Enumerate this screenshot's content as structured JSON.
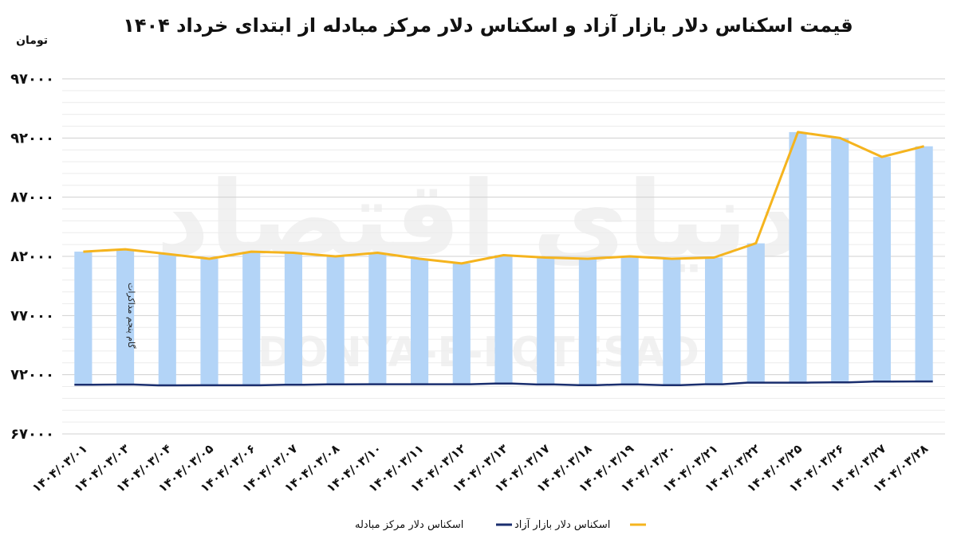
{
  "chart_data": {
    "type": "bar",
    "title": "قیمت اسکناس دلار بازار آزاد و اسکناس دلار مرکز مبادله از ابتدای خرداد ۱۴۰۴",
    "ylabel": "تومان",
    "ylim": [
      67000,
      97000
    ],
    "yticks": [
      67000,
      72000,
      77000,
      82000,
      87000,
      92000,
      97000
    ],
    "ytick_labels": [
      "۶۷۰۰۰",
      "۷۲۰۰۰",
      "۷۷۰۰۰",
      "۸۲۰۰۰",
      "۸۷۰۰۰",
      "۹۲۰۰۰",
      "۹۷۰۰۰"
    ],
    "grid": true,
    "legend_position": "bottom",
    "categories": [
      "۱۴۰۴/۰۳/۰۱",
      "۱۴۰۴/۰۳/۰۳",
      "۱۴۰۴/۰۳/۰۴",
      "۱۴۰۴/۰۳/۰۵",
      "۱۴۰۴/۰۳/۰۶",
      "۱۴۰۴/۰۳/۰۷",
      "۱۴۰۴/۰۳/۰۸",
      "۱۴۰۴/۰۳/۱۰",
      "۱۴۰۴/۰۳/۱۱",
      "۱۴۰۴/۰۳/۱۲",
      "۱۴۰۴/۰۳/۱۳",
      "۱۴۰۴/۰۳/۱۷",
      "۱۴۰۴/۰۳/۱۸",
      "۱۴۰۴/۰۳/۱۹",
      "۱۴۰۴/۰۳/۲۰",
      "۱۴۰۴/۰۳/۲۱",
      "۱۴۰۴/۰۳/۲۲",
      "۱۴۰۴/۰۳/۲۵",
      "۱۴۰۴/۰۳/۲۶",
      "۱۴۰۴/۰۳/۲۷",
      "۱۴۰۴/۰۳/۲۸"
    ],
    "series": [
      {
        "name": "اسکناس دلار بازار آزاد",
        "type": "bar+line",
        "bar_color": "#b3d4f7",
        "line_color": "#f5b41e",
        "values": [
          82400,
          82600,
          82200,
          81800,
          82400,
          82300,
          82000,
          82300,
          81800,
          81400,
          82100,
          81900,
          81800,
          82000,
          81800,
          81900,
          83100,
          92500,
          92000,
          90400,
          91300
        ]
      },
      {
        "name": "اسکناس دلار مرکز مبادله",
        "type": "line",
        "line_color": "#1a2e6e",
        "values": [
          71150,
          71170,
          71100,
          71110,
          71110,
          71150,
          71190,
          71200,
          71200,
          71200,
          71250,
          71180,
          71120,
          71180,
          71120,
          71200,
          71330,
          71330,
          71350,
          71420,
          71430
        ]
      }
    ],
    "annotations": [
      {
        "text": "گام پنجم مذاکرات",
        "category_index": 1
      }
    ]
  },
  "watermark": {
    "persian": "دنیای اقتصاد",
    "latin": "DONYA-E-EQTESAD"
  }
}
